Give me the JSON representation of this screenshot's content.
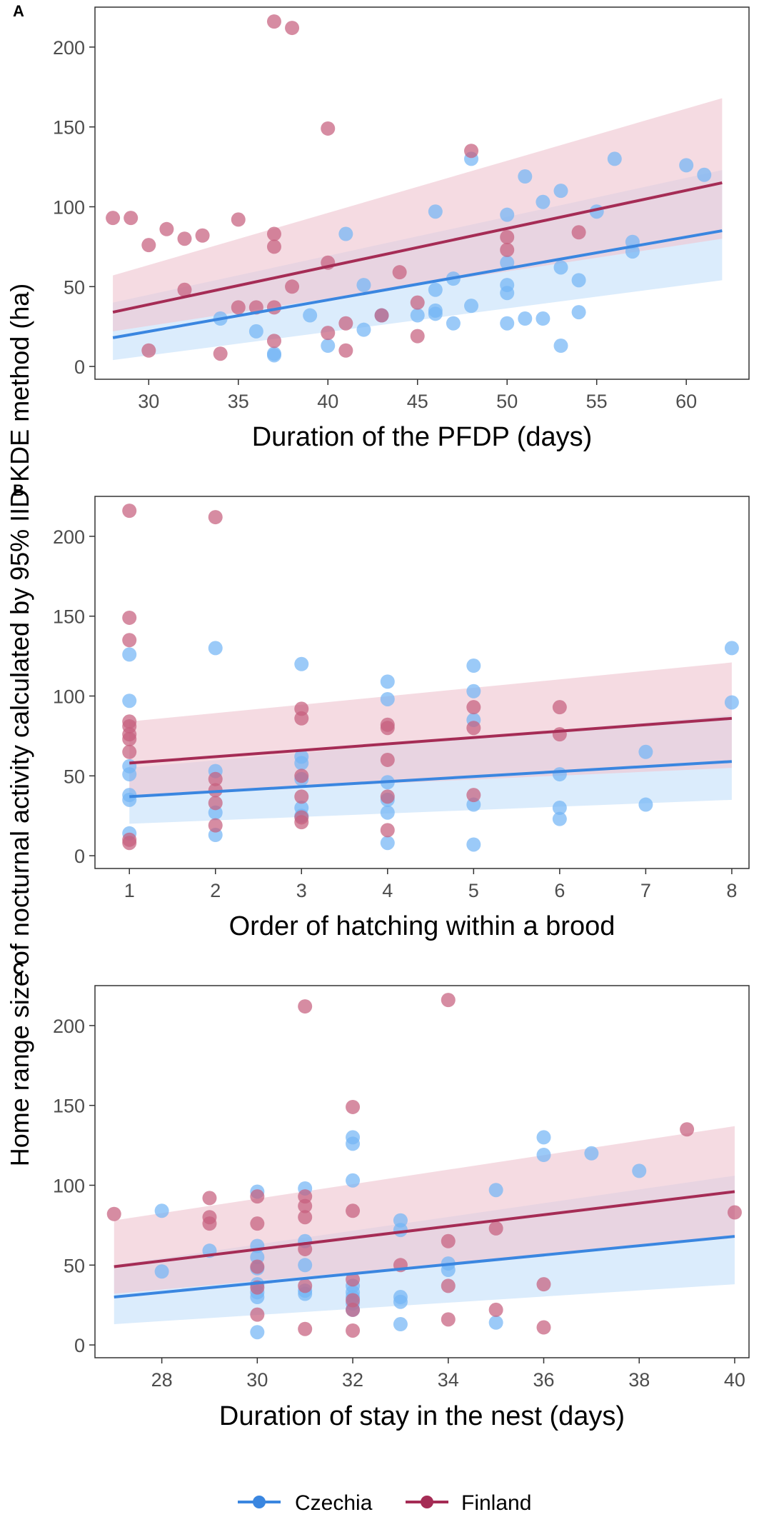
{
  "figure": {
    "ylabel": "Home range size of nocturnal activity calculated by 95% IID KDE method (ha)",
    "legend": [
      {
        "name": "Czechia",
        "color": "#3a86e0"
      },
      {
        "name": "Finland",
        "color": "#a52c55"
      }
    ]
  },
  "colors": {
    "czechia_point": "#74b6f5",
    "finland_point": "#c65f7e",
    "czechia_line": "#3a86e0",
    "finland_line": "#a52c55",
    "czechia_band": "#c8e2fb",
    "finland_band": "#f0c8d3"
  },
  "chart_data": [
    {
      "panel": "A",
      "type": "scatter",
      "xlabel": "Duration of the PFDP (days)",
      "xlim": [
        27,
        63.5
      ],
      "ylim": [
        -8,
        225
      ],
      "xticks": [
        30,
        35,
        40,
        45,
        50,
        55,
        60
      ],
      "yticks": [
        0,
        50,
        100,
        150,
        200
      ],
      "series": [
        {
          "name": "Czechia",
          "points": [
            [
              34,
              30
            ],
            [
              36,
              22
            ],
            [
              37,
              8
            ],
            [
              37,
              7
            ],
            [
              39,
              32
            ],
            [
              40,
              13
            ],
            [
              41,
              83
            ],
            [
              42,
              51
            ],
            [
              42,
              23
            ],
            [
              43,
              32
            ],
            [
              45,
              32
            ],
            [
              46,
              35
            ],
            [
              46,
              48
            ],
            [
              46,
              33
            ],
            [
              46,
              97
            ],
            [
              47,
              55
            ],
            [
              47,
              27
            ],
            [
              48,
              38
            ],
            [
              48,
              130
            ],
            [
              50,
              95
            ],
            [
              50,
              65
            ],
            [
              50,
              51
            ],
            [
              50,
              46
            ],
            [
              50,
              27
            ],
            [
              51,
              30
            ],
            [
              51,
              119
            ],
            [
              52,
              30
            ],
            [
              52,
              103
            ],
            [
              53,
              110
            ],
            [
              53,
              62
            ],
            [
              53,
              13
            ],
            [
              54,
              34
            ],
            [
              54,
              54
            ],
            [
              55,
              97
            ],
            [
              56,
              130
            ],
            [
              57,
              78
            ],
            [
              57,
              72
            ],
            [
              60,
              126
            ],
            [
              61,
              120
            ]
          ],
          "fit": {
            "x": [
              28,
              62
            ],
            "y": [
              18,
              85
            ]
          },
          "ci": {
            "x": [
              28,
              62
            ],
            "lower": [
              4,
              54
            ],
            "upper": [
              40,
              123
            ]
          }
        },
        {
          "name": "Finland",
          "points": [
            [
              28,
              93
            ],
            [
              29,
              93
            ],
            [
              30,
              76
            ],
            [
              30,
              10
            ],
            [
              31,
              86
            ],
            [
              32,
              80
            ],
            [
              32,
              48
            ],
            [
              33,
              82
            ],
            [
              34,
              8
            ],
            [
              35,
              92
            ],
            [
              35,
              37
            ],
            [
              36,
              37
            ],
            [
              37,
              83
            ],
            [
              37,
              75
            ],
            [
              37,
              37
            ],
            [
              37,
              16
            ],
            [
              37,
              216
            ],
            [
              38,
              212
            ],
            [
              38,
              50
            ],
            [
              40,
              149
            ],
            [
              40,
              65
            ],
            [
              40,
              21
            ],
            [
              41,
              27
            ],
            [
              41,
              10
            ],
            [
              43,
              32
            ],
            [
              44,
              59
            ],
            [
              45,
              40
            ],
            [
              45,
              19
            ],
            [
              48,
              135
            ],
            [
              50,
              81
            ],
            [
              50,
              73
            ],
            [
              54,
              84
            ]
          ],
          "fit": {
            "x": [
              28,
              62
            ],
            "y": [
              34,
              115
            ]
          },
          "ci": {
            "x": [
              28,
              62
            ],
            "lower": [
              22,
              80
            ],
            "upper": [
              57,
              168
            ]
          }
        }
      ]
    },
    {
      "panel": "B",
      "type": "scatter",
      "xlabel": "Order of hatching within a brood",
      "xlim": [
        0.6,
        8.2
      ],
      "ylim": [
        -8,
        225
      ],
      "xticks": [
        1,
        2,
        3,
        4,
        5,
        6,
        7,
        8
      ],
      "yticks": [
        0,
        50,
        100,
        150,
        200
      ],
      "series": [
        {
          "name": "Czechia",
          "points": [
            [
              1,
              126
            ],
            [
              1,
              97
            ],
            [
              1,
              56
            ],
            [
              1,
              51
            ],
            [
              1,
              38
            ],
            [
              1,
              35
            ],
            [
              1,
              14
            ],
            [
              2,
              130
            ],
            [
              2,
              53
            ],
            [
              2,
              27
            ],
            [
              2,
              13
            ],
            [
              3,
              120
            ],
            [
              3,
              62
            ],
            [
              3,
              58
            ],
            [
              3,
              48
            ],
            [
              3,
              30
            ],
            [
              3,
              25
            ],
            [
              4,
              109
            ],
            [
              4,
              98
            ],
            [
              4,
              46
            ],
            [
              4,
              35
            ],
            [
              4,
              27
            ],
            [
              4,
              8
            ],
            [
              5,
              119
            ],
            [
              5,
              103
            ],
            [
              5,
              85
            ],
            [
              5,
              32
            ],
            [
              5,
              7
            ],
            [
              6,
              51
            ],
            [
              6,
              30
            ],
            [
              6,
              23
            ],
            [
              7,
              65
            ],
            [
              7,
              32
            ],
            [
              8,
              130
            ],
            [
              8,
              96
            ]
          ],
          "fit": {
            "x": [
              1,
              8
            ],
            "y": [
              37,
              59
            ]
          },
          "ci": {
            "x": [
              1,
              8
            ],
            "lower": [
              20,
              35
            ],
            "upper": [
              55,
              88
            ]
          }
        },
        {
          "name": "Finland",
          "points": [
            [
              1,
              216
            ],
            [
              1,
              149
            ],
            [
              1,
              135
            ],
            [
              1,
              84
            ],
            [
              1,
              81
            ],
            [
              1,
              76
            ],
            [
              1,
              73
            ],
            [
              1,
              65
            ],
            [
              1,
              10
            ],
            [
              1,
              8
            ],
            [
              2,
              212
            ],
            [
              2,
              48
            ],
            [
              2,
              41
            ],
            [
              2,
              33
            ],
            [
              2,
              19
            ],
            [
              3,
              92
            ],
            [
              3,
              86
            ],
            [
              3,
              50
            ],
            [
              3,
              37
            ],
            [
              3,
              24
            ],
            [
              3,
              21
            ],
            [
              4,
              82
            ],
            [
              4,
              80
            ],
            [
              4,
              60
            ],
            [
              4,
              37
            ],
            [
              4,
              16
            ],
            [
              5,
              93
            ],
            [
              5,
              80
            ],
            [
              5,
              38
            ],
            [
              6,
              93
            ],
            [
              6,
              76
            ]
          ],
          "fit": {
            "x": [
              1,
              8
            ],
            "y": [
              58,
              86
            ]
          },
          "ci": {
            "x": [
              1,
              8
            ],
            "lower": [
              38,
              55
            ],
            "upper": [
              84,
              121
            ]
          }
        }
      ]
    },
    {
      "panel": "C",
      "type": "scatter",
      "xlabel": "Duration of stay in the nest (days)",
      "xlim": [
        26.6,
        40.3
      ],
      "ylim": [
        -8,
        225
      ],
      "xticks": [
        28,
        30,
        32,
        34,
        36,
        38,
        40
      ],
      "yticks": [
        0,
        50,
        100,
        150,
        200
      ],
      "series": [
        {
          "name": "Czechia",
          "points": [
            [
              28,
              84
            ],
            [
              28,
              46
            ],
            [
              29,
              59
            ],
            [
              30,
              96
            ],
            [
              30,
              62
            ],
            [
              30,
              55
            ],
            [
              30,
              48
            ],
            [
              30,
              38
            ],
            [
              30,
              33
            ],
            [
              30,
              30
            ],
            [
              30,
              8
            ],
            [
              31,
              98
            ],
            [
              31,
              65
            ],
            [
              31,
              50
            ],
            [
              31,
              34
            ],
            [
              31,
              32
            ],
            [
              32,
              130
            ],
            [
              32,
              126
            ],
            [
              32,
              103
            ],
            [
              32,
              37
            ],
            [
              32,
              33
            ],
            [
              32,
              30
            ],
            [
              32,
              26
            ],
            [
              32,
              22
            ],
            [
              33,
              78
            ],
            [
              33,
              72
            ],
            [
              33,
              30
            ],
            [
              33,
              27
            ],
            [
              33,
              13
            ],
            [
              34,
              51
            ],
            [
              34,
              47
            ],
            [
              35,
              97
            ],
            [
              35,
              14
            ],
            [
              36,
              130
            ],
            [
              36,
              119
            ],
            [
              37,
              120
            ],
            [
              38,
              109
            ]
          ],
          "fit": {
            "x": [
              27,
              40
            ],
            "y": [
              30,
              68
            ]
          },
          "ci": {
            "x": [
              27,
              40
            ],
            "lower": [
              13,
              38
            ],
            "upper": [
              50,
              106
            ]
          }
        },
        {
          "name": "Finland",
          "points": [
            [
              27,
              82
            ],
            [
              29,
              92
            ],
            [
              29,
              80
            ],
            [
              29,
              76
            ],
            [
              30,
              93
            ],
            [
              30,
              76
            ],
            [
              30,
              49
            ],
            [
              30,
              36
            ],
            [
              30,
              19
            ],
            [
              31,
              212
            ],
            [
              31,
              93
            ],
            [
              31,
              87
            ],
            [
              31,
              80
            ],
            [
              31,
              60
            ],
            [
              31,
              37
            ],
            [
              31,
              10
            ],
            [
              32,
              149
            ],
            [
              32,
              84
            ],
            [
              32,
              41
            ],
            [
              32,
              28
            ],
            [
              32,
              22
            ],
            [
              32,
              9
            ],
            [
              33,
              50
            ],
            [
              34,
              216
            ],
            [
              34,
              65
            ],
            [
              34,
              37
            ],
            [
              34,
              16
            ],
            [
              35,
              73
            ],
            [
              35,
              22
            ],
            [
              36,
              38
            ],
            [
              36,
              11
            ],
            [
              39,
              135
            ],
            [
              40,
              83
            ]
          ],
          "fit": {
            "x": [
              27,
              40
            ],
            "y": [
              49,
              96
            ]
          },
          "ci": {
            "x": [
              27,
              40
            ],
            "lower": [
              32,
              67
            ],
            "upper": [
              78,
              137
            ]
          }
        }
      ]
    }
  ]
}
